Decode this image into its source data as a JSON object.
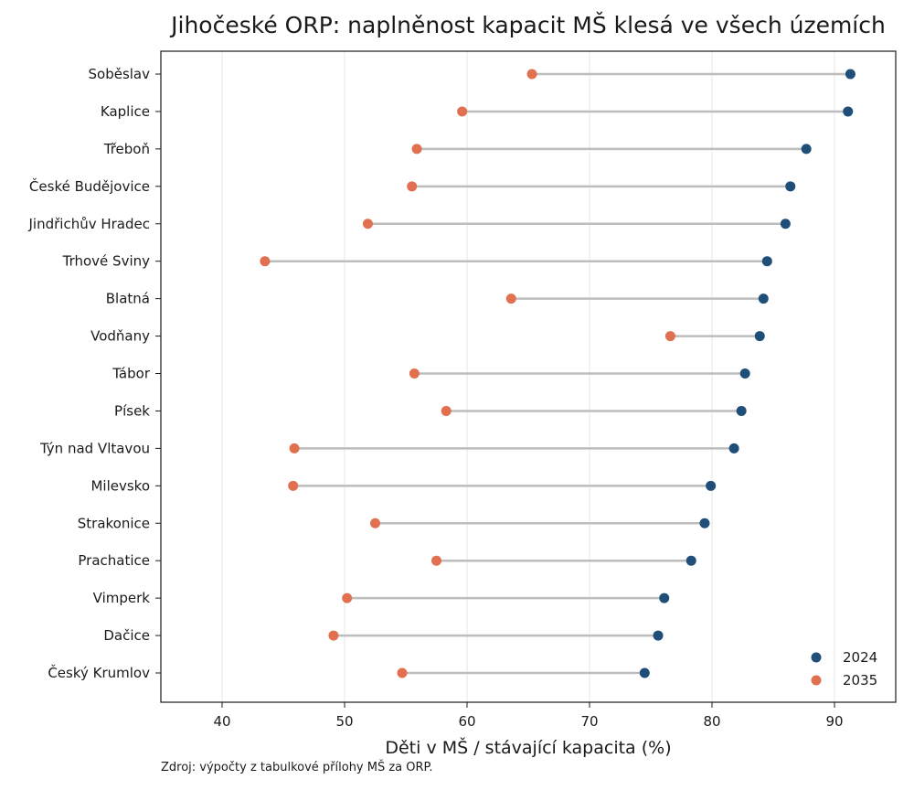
{
  "chart_data": {
    "type": "dumbbell",
    "title": "Jihočeské ORP: naplněnost kapacit MŠ klesá ve všech územích",
    "xlabel": "Děti v MŠ / stávající kapacita (%)",
    "source": "Zdroj: výpočty z tabulkové přílohy MŠ za ORP.",
    "xlim": [
      35,
      95
    ],
    "xticks": [
      40,
      50,
      60,
      70,
      80,
      90
    ],
    "grid": "vertical",
    "legend_position": "bottom-right",
    "categories": [
      "Soběslav",
      "Kaplice",
      "Třeboň",
      "České Budějovice",
      "Jindřichův Hradec",
      "Trhové Sviny",
      "Blatná",
      "Vodňany",
      "Tábor",
      "Písek",
      "Týn nad Vltavou",
      "Milevsko",
      "Strakonice",
      "Prachatice",
      "Vimperk",
      "Dačice",
      "Český Krumlov"
    ],
    "series": [
      {
        "name": "2024",
        "color": "#1f4e79",
        "values": [
          91.3,
          91.1,
          87.7,
          86.4,
          86.0,
          84.5,
          84.2,
          83.9,
          82.7,
          82.4,
          81.8,
          79.9,
          79.4,
          78.3,
          76.1,
          75.6,
          74.5
        ]
      },
      {
        "name": "2035",
        "color": "#e07050",
        "values": [
          65.3,
          59.6,
          55.9,
          55.5,
          51.9,
          43.5,
          63.6,
          76.6,
          55.7,
          58.3,
          45.9,
          45.8,
          52.5,
          57.5,
          50.2,
          49.1,
          54.7
        ]
      }
    ]
  }
}
